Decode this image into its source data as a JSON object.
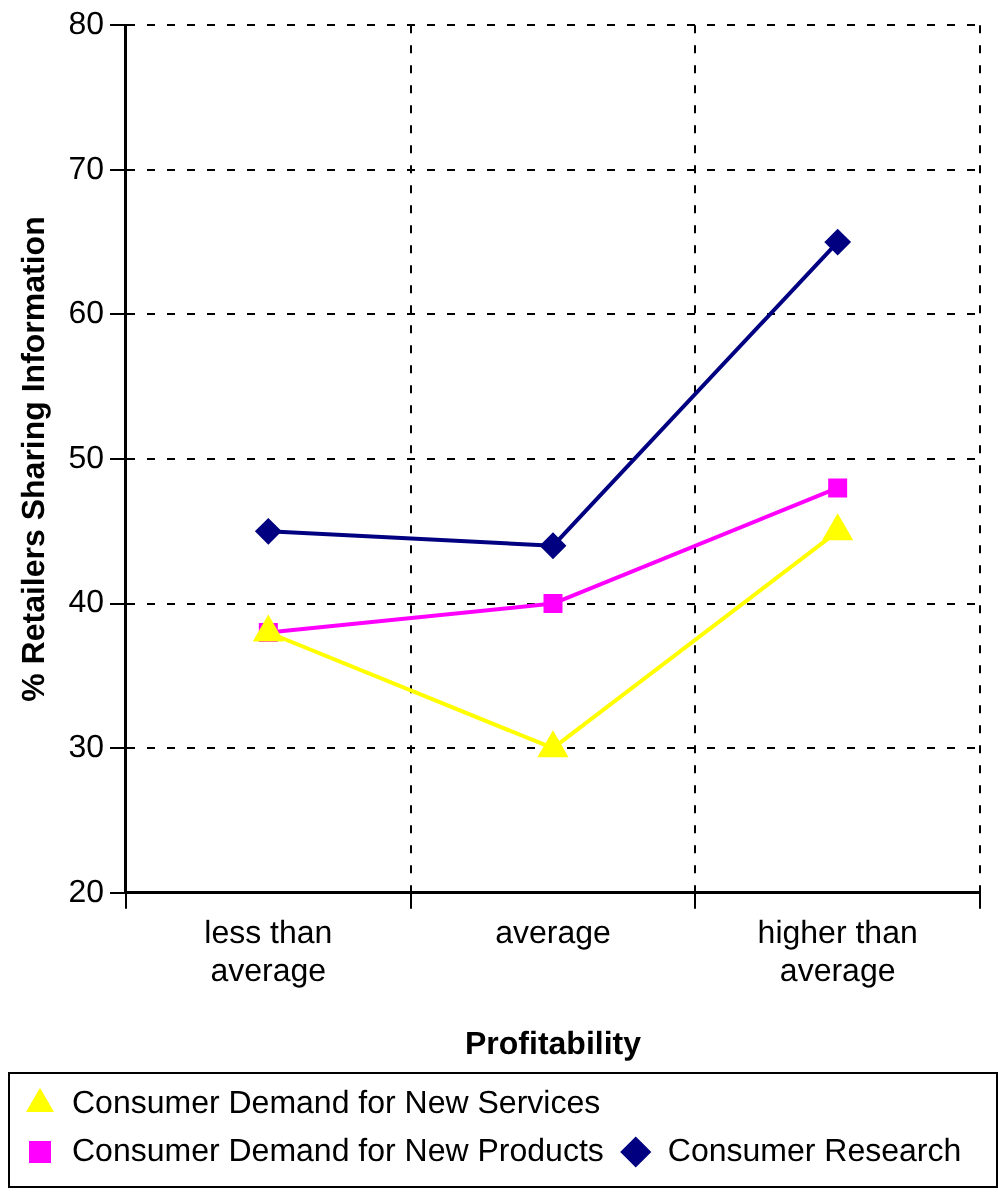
{
  "chart_data": {
    "type": "line",
    "xlabel": "Profitability",
    "ylabel": "% Retailers Sharing Information",
    "categories": [
      "less than average",
      "average",
      "higher than average"
    ],
    "series": [
      {
        "name": "Consumer Research",
        "color": "#000080",
        "marker": "diamond",
        "values": [
          45,
          44,
          65
        ]
      },
      {
        "name": "Consumer Demand for New Products",
        "color": "#ff00ff",
        "marker": "square",
        "values": [
          38,
          40,
          48
        ]
      },
      {
        "name": "Consumer Demand for New Services",
        "color": "#ffff00",
        "marker": "triangle",
        "values": [
          38,
          30,
          45
        ]
      }
    ],
    "ylim": [
      20,
      80
    ],
    "yticks": [
      20,
      30,
      40,
      50,
      60,
      70,
      80
    ],
    "grid": true,
    "legend": "bottom",
    "line_style": "solid"
  }
}
